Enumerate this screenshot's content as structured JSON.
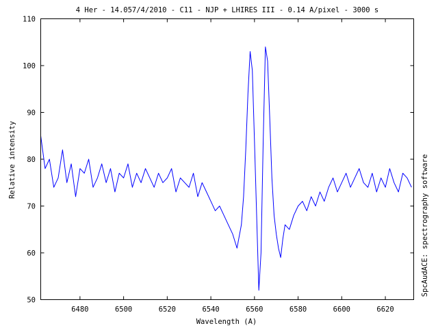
{
  "chart_data": {
    "type": "line",
    "title": "4 Her  - 14.057/4/2010 - C11 - NJP + LHIRES III - 0.14 A/pixel - 3000 s",
    "xlabel": "Wavelength (A)",
    "ylabel": "Relative intensity",
    "side_label": "SpcAudACE: spectrography software",
    "xlim": [
      6462,
      6633
    ],
    "ylim": [
      50,
      110
    ],
    "xticks": [
      "6480",
      "6500",
      "6520",
      "6540",
      "6560",
      "6580",
      "6600",
      "6620"
    ],
    "yticks": [
      "50",
      "60",
      "70",
      "80",
      "90",
      "100",
      "110"
    ],
    "grid": false,
    "series": [
      {
        "color": "#0000ff",
        "x": [
          6462,
          6464,
          6466,
          6468,
          6470,
          6472,
          6474,
          6476,
          6478,
          6480,
          6482,
          6484,
          6486,
          6488,
          6490,
          6492,
          6494,
          6496,
          6498,
          6500,
          6502,
          6504,
          6506,
          6508,
          6510,
          6512,
          6514,
          6516,
          6518,
          6520,
          6522,
          6524,
          6526,
          6528,
          6530,
          6532,
          6534,
          6536,
          6538,
          6540,
          6542,
          6544,
          6546,
          6548,
          6550,
          6552,
          6554,
          6555,
          6556,
          6557,
          6558,
          6559,
          6560,
          6561,
          6562,
          6563,
          6564,
          6565,
          6566,
          6567,
          6568,
          6569,
          6570,
          6571,
          6572,
          6573,
          6574,
          6576,
          6578,
          6580,
          6582,
          6584,
          6586,
          6588,
          6590,
          6592,
          6594,
          6596,
          6598,
          6600,
          6602,
          6604,
          6606,
          6608,
          6610,
          6612,
          6614,
          6616,
          6618,
          6620,
          6622,
          6624,
          6626,
          6628,
          6630,
          6632
        ],
        "y": [
          85,
          78,
          80,
          74,
          76,
          82,
          75,
          79,
          72,
          78,
          77,
          80,
          74,
          76,
          79,
          75,
          78,
          73,
          77,
          76,
          79,
          74,
          77,
          75,
          78,
          76,
          74,
          77,
          75,
          76,
          78,
          73,
          76,
          75,
          74,
          77,
          72,
          75,
          73,
          71,
          69,
          70,
          68,
          66,
          64,
          61,
          66,
          72,
          82,
          94,
          103,
          99,
          84,
          68,
          52,
          60,
          84,
          104,
          101,
          89,
          76,
          68,
          64,
          61,
          59,
          63,
          66,
          65,
          68,
          70,
          71,
          69,
          72,
          70,
          73,
          71,
          74,
          76,
          73,
          75,
          77,
          74,
          76,
          78,
          75,
          74,
          77,
          73,
          76,
          74,
          78,
          75,
          73,
          77,
          76,
          74
        ]
      }
    ]
  }
}
